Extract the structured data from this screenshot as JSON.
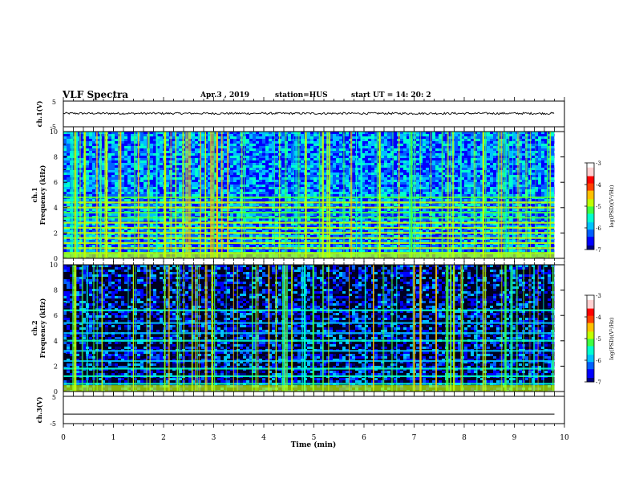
{
  "header": {
    "title": "VLF Spectra",
    "date": "Apr.3  , 2019",
    "station": "station=HUS",
    "start_ut": "start  UT =  14: 20: 2"
  },
  "axes": {
    "ch1_label": "ch.1(V)",
    "ch1_ticks": [
      "5",
      "-5"
    ],
    "spec1_label_line1": "ch.1",
    "spec1_label_line2": "Frequency (kHz)",
    "spec2_label_line1": "ch.2",
    "spec2_label_line2": "Frequency (kHz)",
    "ch3_label": "ch.3(V)",
    "ch3_ticks": [
      "5",
      "-5"
    ],
    "freq_ticks": [
      "0",
      "2",
      "4",
      "6",
      "8",
      "10"
    ],
    "time_ticks": [
      "0",
      "1",
      "2",
      "3",
      "4",
      "5",
      "6",
      "7",
      "8",
      "9",
      "10"
    ],
    "xlabel": "Time  (min)"
  },
  "colorbar": {
    "label": "log(PSD)(V²/Hz)",
    "ticks": [
      "-3",
      "-4",
      "-5",
      "-6",
      "-7"
    ],
    "colors": [
      "#000080",
      "#0000ff",
      "#0060ff",
      "#00c0ff",
      "#00ffd0",
      "#40ff40",
      "#c0ff00",
      "#ffc000",
      "#ff4000",
      "#ff0000",
      "#ffd0d0",
      "#ffffff"
    ]
  },
  "chart_data": [
    {
      "type": "line",
      "ylabel": "ch.1(V)",
      "xlabel": "Time  (min)",
      "xlim": [
        0,
        10
      ],
      "ylim": [
        -5,
        5
      ],
      "description_values": {
        "mean": 0.2,
        "noise_amplitude": 0.4
      },
      "x_end": 9.8
    },
    {
      "type": "heatmap",
      "ylabel": "Frequency (kHz)",
      "channel": "ch.1",
      "xlim": [
        0,
        10
      ],
      "ylim": [
        0,
        10
      ],
      "zlim": [
        -7,
        -3
      ],
      "x_end": 9.8,
      "band_freqs_khz": [
        0.4,
        0.8,
        1.2,
        1.6,
        2.0,
        2.4,
        2.8,
        3.2,
        3.6,
        4.0,
        4.4,
        4.8
      ],
      "background_level": -6.3
    },
    {
      "type": "heatmap",
      "ylabel": "Frequency (kHz)",
      "channel": "ch.2",
      "xlim": [
        0,
        10
      ],
      "ylim": [
        0,
        10
      ],
      "zlim": [
        -7,
        -3
      ],
      "x_end": 9.8,
      "band_freqs_khz": [
        0.6,
        1.2,
        1.8,
        2.4,
        3.2,
        4.0,
        4.6,
        5.4,
        6.4
      ],
      "background_level": -6.9
    },
    {
      "type": "line",
      "ylabel": "ch.3(V)",
      "xlabel": "Time  (min)",
      "xlim": [
        0,
        10
      ],
      "ylim": [
        -5,
        5
      ],
      "constant_value": -1.5,
      "x_end": 9.8
    }
  ]
}
